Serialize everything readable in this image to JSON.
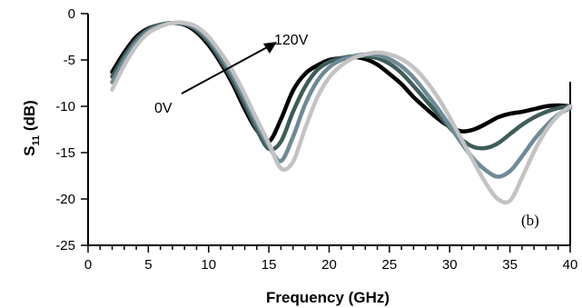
{
  "chart_data": {
    "type": "line",
    "xlabel": "Frequency (GHz)",
    "ylabel_main": "S",
    "ylabel_sub": "11",
    "ylabel_unit": " (dB)",
    "xlim": [
      0,
      40
    ],
    "ylim": [
      -25,
      0
    ],
    "x_ticks": [
      0,
      5,
      10,
      15,
      20,
      25,
      30,
      35,
      40
    ],
    "x_tick_labels": [
      "0",
      "5",
      "10",
      "15",
      "20",
      "25",
      "30",
      "35",
      "40"
    ],
    "y_ticks": [
      0,
      -5,
      -10,
      -15,
      -20,
      -25
    ],
    "y_tick_labels": [
      "0",
      "-5",
      "-10",
      "-15",
      "-20",
      "-25"
    ],
    "grid": false,
    "annotations": {
      "low_voltage": "0V",
      "high_voltage": "120V",
      "panel": "(b)"
    },
    "series": [
      {
        "color": "#000000",
        "x": [
          2,
          3,
          4,
          5,
          6,
          7,
          8,
          9,
          10,
          11,
          12,
          13,
          14,
          15,
          16,
          17,
          18,
          19,
          20,
          21,
          22,
          23,
          24,
          25,
          26,
          27,
          28,
          29,
          30,
          31,
          32,
          33,
          34,
          35,
          36,
          37,
          38,
          39,
          40
        ],
        "y": [
          -6.3,
          -4.2,
          -2.5,
          -1.6,
          -1.2,
          -1.0,
          -1.2,
          -2.0,
          -3.4,
          -5.3,
          -7.6,
          -10.3,
          -12.6,
          -13.8,
          -11.4,
          -8.3,
          -6.5,
          -5.6,
          -5.0,
          -4.8,
          -4.7,
          -4.9,
          -5.5,
          -6.5,
          -7.6,
          -9.0,
          -10.2,
          -11.3,
          -12.2,
          -12.7,
          -12.5,
          -11.9,
          -11.2,
          -10.8,
          -10.6,
          -10.3,
          -10.0,
          -9.9,
          -10.0
        ]
      },
      {
        "color": "#3f5c58",
        "x": [
          2,
          3,
          4,
          5,
          6,
          7,
          8,
          9,
          10,
          11,
          12,
          13,
          14,
          15,
          16,
          17,
          18,
          19,
          20,
          21,
          22,
          23,
          24,
          25,
          26,
          27,
          28,
          29,
          30,
          31,
          32,
          33,
          34,
          35,
          36,
          37,
          38,
          39,
          40
        ],
        "y": [
          -6.8,
          -4.6,
          -2.8,
          -1.7,
          -1.2,
          -1.0,
          -1.1,
          -1.8,
          -3.1,
          -5.0,
          -7.2,
          -9.8,
          -12.5,
          -14.6,
          -13.8,
          -10.6,
          -7.9,
          -6.1,
          -5.2,
          -4.8,
          -4.6,
          -4.6,
          -4.8,
          -5.4,
          -6.4,
          -7.8,
          -9.3,
          -10.8,
          -12.3,
          -13.6,
          -14.4,
          -14.5,
          -14.0,
          -13.0,
          -12.0,
          -11.2,
          -10.6,
          -10.2,
          -10.0
        ]
      },
      {
        "color": "#6f8a96",
        "x": [
          2,
          3,
          4,
          5,
          6,
          7,
          8,
          9,
          10,
          11,
          12,
          13,
          14,
          15,
          16,
          17,
          18,
          19,
          20,
          21,
          22,
          23,
          24,
          25,
          26,
          27,
          28,
          29,
          30,
          31,
          32,
          33,
          34,
          35,
          36,
          37,
          38,
          39,
          40
        ],
        "y": [
          -7.4,
          -5.0,
          -3.1,
          -1.9,
          -1.3,
          -1.0,
          -1.1,
          -1.6,
          -2.8,
          -4.6,
          -6.7,
          -9.2,
          -11.9,
          -14.3,
          -15.9,
          -13.3,
          -9.8,
          -7.3,
          -5.8,
          -5.0,
          -4.6,
          -4.4,
          -4.5,
          -4.9,
          -5.7,
          -6.9,
          -8.5,
          -10.2,
          -12.1,
          -14.0,
          -15.7,
          -16.9,
          -17.6,
          -17.0,
          -15.4,
          -13.6,
          -12.1,
          -10.9,
          -10.2
        ]
      },
      {
        "color": "#c3c3c3",
        "x": [
          2,
          3,
          4,
          5,
          6,
          7,
          8,
          9,
          10,
          11,
          12,
          13,
          14,
          15,
          16,
          17,
          18,
          19,
          20,
          21,
          22,
          23,
          24,
          25,
          26,
          27,
          28,
          29,
          30,
          31,
          32,
          33,
          34,
          35,
          36,
          37,
          38,
          39,
          40
        ],
        "y": [
          -8.2,
          -5.6,
          -3.5,
          -2.1,
          -1.4,
          -1.0,
          -1.0,
          -1.4,
          -2.5,
          -4.2,
          -6.2,
          -8.7,
          -11.4,
          -14.0,
          -16.7,
          -16.0,
          -12.4,
          -9.1,
          -6.9,
          -5.6,
          -4.8,
          -4.4,
          -4.2,
          -4.4,
          -4.9,
          -5.8,
          -7.2,
          -9.0,
          -11.2,
          -13.6,
          -16.0,
          -18.3,
          -20.0,
          -20.2,
          -17.7,
          -14.9,
          -12.6,
          -11.0,
          -10.0
        ]
      }
    ]
  }
}
